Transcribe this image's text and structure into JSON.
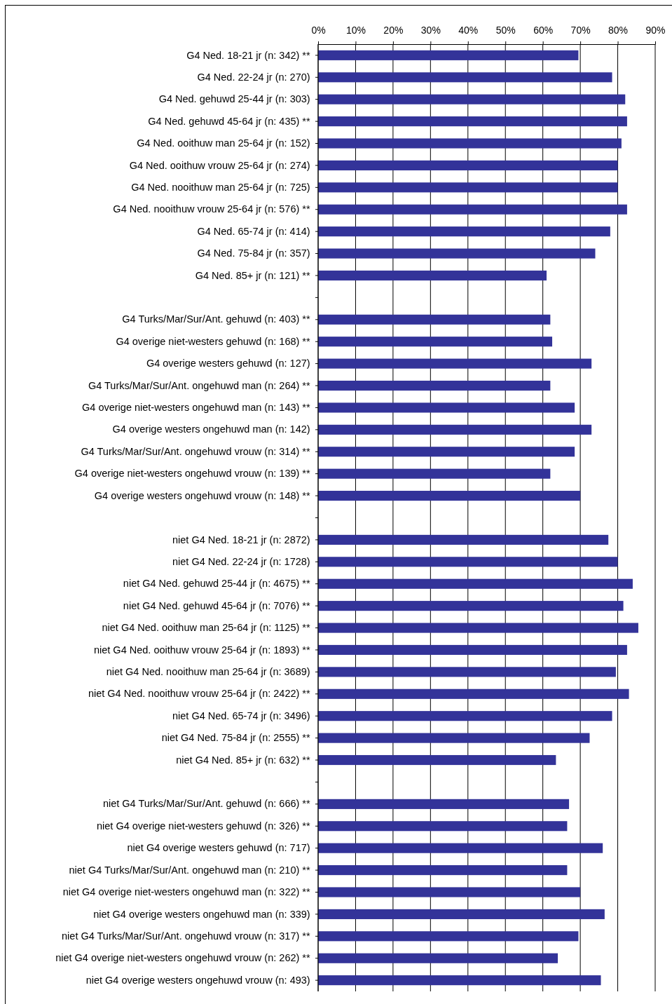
{
  "chart_data": {
    "type": "bar",
    "orientation": "horizontal",
    "color": "#333399",
    "grid": "x",
    "xlim": [
      0,
      90
    ],
    "xticks": [
      {
        "value": 0,
        "label": "0%"
      },
      {
        "value": 10,
        "label": "10%"
      },
      {
        "value": 20,
        "label": "20%"
      },
      {
        "value": 30,
        "label": "30%"
      },
      {
        "value": 40,
        "label": "40%"
      },
      {
        "value": 50,
        "label": "50%"
      },
      {
        "value": 60,
        "label": "60%"
      },
      {
        "value": 70,
        "label": "70%"
      },
      {
        "value": 80,
        "label": "80%"
      },
      {
        "value": 90,
        "label": "90%"
      }
    ],
    "categories": [
      "G4 Ned. 18-21 jr (n: 342) **",
      "G4 Ned. 22-24 jr (n: 270)",
      "G4 Ned. gehuwd 25-44 jr (n: 303)",
      "G4 Ned. gehuwd 45-64 jr (n: 435) **",
      "G4 Ned. ooithuw man 25-64 jr (n: 152)",
      "G4 Ned. ooithuw vrouw 25-64 jr (n: 274)",
      "G4 Ned. nooithuw man 25-64 jr (n: 725)",
      "G4 Ned. nooithuw vrouw 25-64 jr (n: 576) **",
      "G4 Ned. 65-74 jr (n: 414)",
      "G4 Ned. 75-84 jr (n: 357)",
      "G4 Ned. 85+ jr (n: 121) **",
      null,
      "G4 Turks/Mar/Sur/Ant. gehuwd  (n: 403) **",
      "G4 overige niet-westers gehuwd  (n: 168) **",
      "G4 overige westers gehuwd  (n: 127)",
      "G4 Turks/Mar/Sur/Ant. ongehuwd man  (n: 264) **",
      "G4 overige niet-westers ongehuwd man  (n: 143) **",
      "G4 overige westers ongehuwd man  (n: 142)",
      "G4 Turks/Mar/Sur/Ant. ongehuwd vrouw  (n: 314) **",
      "G4 overige niet-westers ongehuwd vrouw  (n: 139) **",
      "G4 overige westers ongehuwd vrouw  (n: 148) **",
      null,
      "niet G4 Ned. 18-21 jr (n: 2872)",
      "niet G4 Ned. 22-24 jr (n: 1728)",
      "niet G4 Ned. gehuwd 25-44 jr (n: 4675) **",
      "niet G4 Ned. gehuwd 45-64 jr (n: 7076) **",
      "niet G4 Ned. ooithuw man 25-64 jr (n: 1125) **",
      "niet G4 Ned. ooithuw vrouw 25-64 jr (n: 1893) **",
      "niet G4 Ned. nooithuw man 25-64 jr (n: 3689)",
      "niet G4 Ned. nooithuw vrouw 25-64 jr (n: 2422) **",
      "niet G4 Ned. 65-74 jr (n: 3496)",
      "niet G4 Ned. 75-84 jr (n: 2555) **",
      "niet G4 Ned. 85+ jr (n: 632) **",
      null,
      "niet G4 Turks/Mar/Sur/Ant. gehuwd  (n: 666) **",
      "niet G4 overige niet-westers gehuwd  (n: 326) **",
      "niet G4 overige westers gehuwd  (n: 717)",
      "niet G4 Turks/Mar/Sur/Ant. ongehuwd man  (n: 210) **",
      "niet G4 overige niet-westers ongehuwd man  (n: 322) **",
      "niet G4 overige westers ongehuwd man  (n: 339)",
      "niet G4 Turks/Mar/Sur/Ant. ongehuwd vrouw  (n: 317) **",
      "niet G4 overige niet-westers ongehuwd vrouw  (n: 262) **",
      "niet G4 overige westers ongehuwd vrouw  (n: 493)"
    ],
    "values": [
      69.5,
      78.5,
      82,
      82.5,
      81,
      80,
      80,
      82.5,
      78,
      74,
      61,
      null,
      62,
      62.5,
      73,
      62,
      68.5,
      73,
      68.5,
      62,
      70,
      null,
      77.5,
      80,
      84,
      81.5,
      85.5,
      82.5,
      79.5,
      83,
      78.5,
      72.5,
      63.5,
      null,
      67,
      66.5,
      76,
      66.5,
      70,
      76.5,
      69.5,
      64,
      75.5
    ]
  }
}
